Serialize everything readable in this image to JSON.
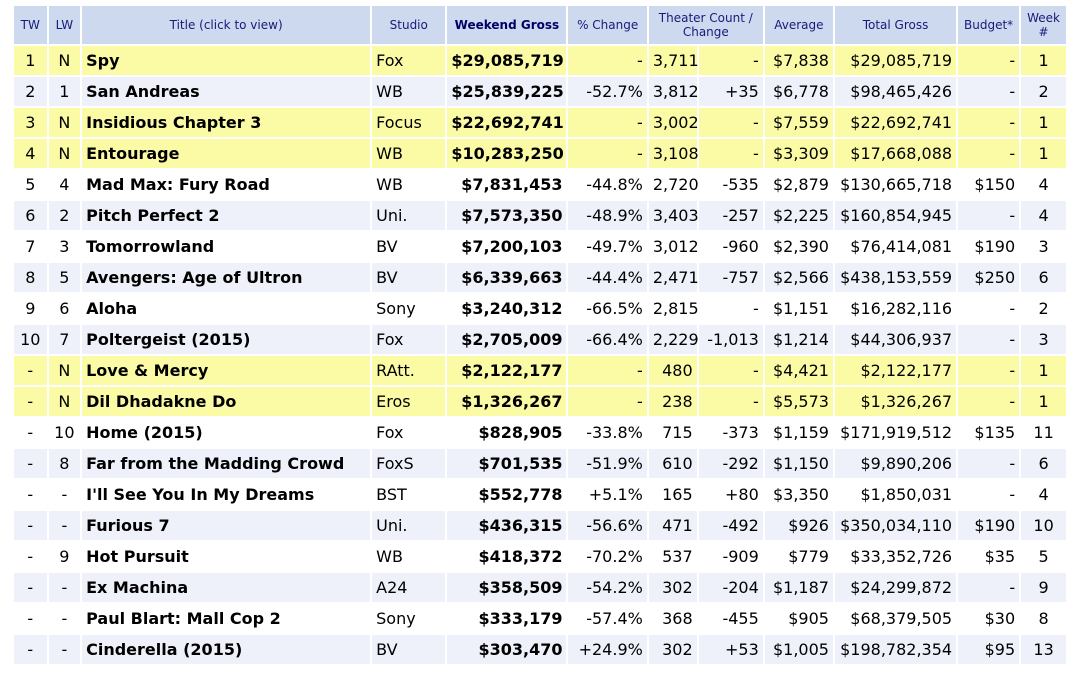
{
  "columns": {
    "tw": "TW",
    "lw": "LW",
    "title": "Title (click to view)",
    "studio": "Studio",
    "weekend_gross": "Weekend Gross",
    "pct_change": "% Change",
    "theater_count": "Theater Count / Change",
    "average": "Average",
    "total_gross": "Total Gross",
    "budget": "Budget*",
    "week": "Week #"
  },
  "rows": [
    {
      "tw": "1",
      "lw": "N",
      "title": "Spy",
      "studio": "Fox",
      "gross": "$29,085,719",
      "pct": "-",
      "theaters": "3,711",
      "tchange": "-",
      "avg": "$7,838",
      "total": "$29,085,719",
      "budget": "-",
      "week": "1",
      "highlight": true
    },
    {
      "tw": "2",
      "lw": "1",
      "title": "San Andreas",
      "studio": "WB",
      "gross": "$25,839,225",
      "pct": "-52.7%",
      "theaters": "3,812",
      "tchange": "+35",
      "avg": "$6,778",
      "total": "$98,465,426",
      "budget": "-",
      "week": "2",
      "highlight": false
    },
    {
      "tw": "3",
      "lw": "N",
      "title": "Insidious Chapter 3",
      "studio": "Focus",
      "gross": "$22,692,741",
      "pct": "-",
      "theaters": "3,002",
      "tchange": "-",
      "avg": "$7,559",
      "total": "$22,692,741",
      "budget": "-",
      "week": "1",
      "highlight": true
    },
    {
      "tw": "4",
      "lw": "N",
      "title": "Entourage",
      "studio": "WB",
      "gross": "$10,283,250",
      "pct": "-",
      "theaters": "3,108",
      "tchange": "-",
      "avg": "$3,309",
      "total": "$17,668,088",
      "budget": "-",
      "week": "1",
      "highlight": true
    },
    {
      "tw": "5",
      "lw": "4",
      "title": "Mad Max: Fury Road",
      "studio": "WB",
      "gross": "$7,831,453",
      "pct": "-44.8%",
      "theaters": "2,720",
      "tchange": "-535",
      "avg": "$2,879",
      "total": "$130,665,718",
      "budget": "$150",
      "week": "4",
      "highlight": false
    },
    {
      "tw": "6",
      "lw": "2",
      "title": "Pitch Perfect 2",
      "studio": "Uni.",
      "gross": "$7,573,350",
      "pct": "-48.9%",
      "theaters": "3,403",
      "tchange": "-257",
      "avg": "$2,225",
      "total": "$160,854,945",
      "budget": "-",
      "week": "4",
      "highlight": false
    },
    {
      "tw": "7",
      "lw": "3",
      "title": "Tomorrowland",
      "studio": "BV",
      "gross": "$7,200,103",
      "pct": "-49.7%",
      "theaters": "3,012",
      "tchange": "-960",
      "avg": "$2,390",
      "total": "$76,414,081",
      "budget": "$190",
      "week": "3",
      "highlight": false
    },
    {
      "tw": "8",
      "lw": "5",
      "title": "Avengers: Age of Ultron",
      "studio": "BV",
      "gross": "$6,339,663",
      "pct": "-44.4%",
      "theaters": "2,471",
      "tchange": "-757",
      "avg": "$2,566",
      "total": "$438,153,559",
      "budget": "$250",
      "week": "6",
      "highlight": false
    },
    {
      "tw": "9",
      "lw": "6",
      "title": "Aloha",
      "studio": "Sony",
      "gross": "$3,240,312",
      "pct": "-66.5%",
      "theaters": "2,815",
      "tchange": "-",
      "avg": "$1,151",
      "total": "$16,282,116",
      "budget": "-",
      "week": "2",
      "highlight": false
    },
    {
      "tw": "10",
      "lw": "7",
      "title": "Poltergeist (2015)",
      "studio": "Fox",
      "gross": "$2,705,009",
      "pct": "-66.4%",
      "theaters": "2,229",
      "tchange": "-1,013",
      "avg": "$1,214",
      "total": "$44,306,937",
      "budget": "-",
      "week": "3",
      "highlight": false
    },
    {
      "tw": "-",
      "lw": "N",
      "title": "Love & Mercy",
      "studio": "RAtt.",
      "gross": "$2,122,177",
      "pct": "-",
      "theaters": "480",
      "tchange": "-",
      "avg": "$4,421",
      "total": "$2,122,177",
      "budget": "-",
      "week": "1",
      "highlight": true
    },
    {
      "tw": "-",
      "lw": "N",
      "title": "Dil Dhadakne Do",
      "studio": "Eros",
      "gross": "$1,326,267",
      "pct": "-",
      "theaters": "238",
      "tchange": "-",
      "avg": "$5,573",
      "total": "$1,326,267",
      "budget": "-",
      "week": "1",
      "highlight": true
    },
    {
      "tw": "-",
      "lw": "10",
      "title": "Home (2015)",
      "studio": "Fox",
      "gross": "$828,905",
      "pct": "-33.8%",
      "theaters": "715",
      "tchange": "-373",
      "avg": "$1,159",
      "total": "$171,919,512",
      "budget": "$135",
      "week": "11",
      "highlight": false
    },
    {
      "tw": "-",
      "lw": "8",
      "title": "Far from the Madding Crowd",
      "studio": "FoxS",
      "gross": "$701,535",
      "pct": "-51.9%",
      "theaters": "610",
      "tchange": "-292",
      "avg": "$1,150",
      "total": "$9,890,206",
      "budget": "-",
      "week": "6",
      "highlight": false
    },
    {
      "tw": "-",
      "lw": "-",
      "title": "I'll See You In My Dreams",
      "studio": "BST",
      "gross": "$552,778",
      "pct": "+5.1%",
      "theaters": "165",
      "tchange": "+80",
      "avg": "$3,350",
      "total": "$1,850,031",
      "budget": "-",
      "week": "4",
      "highlight": false
    },
    {
      "tw": "-",
      "lw": "-",
      "title": "Furious 7",
      "studio": "Uni.",
      "gross": "$436,315",
      "pct": "-56.6%",
      "theaters": "471",
      "tchange": "-492",
      "avg": "$926",
      "total": "$350,034,110",
      "budget": "$190",
      "week": "10",
      "highlight": false
    },
    {
      "tw": "-",
      "lw": "9",
      "title": "Hot Pursuit",
      "studio": "WB",
      "gross": "$418,372",
      "pct": "-70.2%",
      "theaters": "537",
      "tchange": "-909",
      "avg": "$779",
      "total": "$33,352,726",
      "budget": "$35",
      "week": "5",
      "highlight": false
    },
    {
      "tw": "-",
      "lw": "-",
      "title": "Ex Machina",
      "studio": "A24",
      "gross": "$358,509",
      "pct": "-54.2%",
      "theaters": "302",
      "tchange": "-204",
      "avg": "$1,187",
      "total": "$24,299,872",
      "budget": "-",
      "week": "9",
      "highlight": false
    },
    {
      "tw": "-",
      "lw": "-",
      "title": "Paul Blart: Mall Cop 2",
      "studio": "Sony",
      "gross": "$333,179",
      "pct": "-57.4%",
      "theaters": "368",
      "tchange": "-455",
      "avg": "$905",
      "total": "$68,379,505",
      "budget": "$30",
      "week": "8",
      "highlight": false
    },
    {
      "tw": "-",
      "lw": "-",
      "title": "Cinderella (2015)",
      "studio": "BV",
      "gross": "$303,470",
      "pct": "+24.9%",
      "theaters": "302",
      "tchange": "+53",
      "avg": "$1,005",
      "total": "$198,782,354",
      "budget": "$95",
      "week": "13",
      "highlight": false
    }
  ],
  "colors": {
    "header_bg": "#ccd9ee",
    "highlight_bg": "#fbfba6",
    "alt_row_bg": "#eef1fa",
    "negative": "#e0141e",
    "positive": "#1a1aa8",
    "link": "#1a1a8c"
  }
}
